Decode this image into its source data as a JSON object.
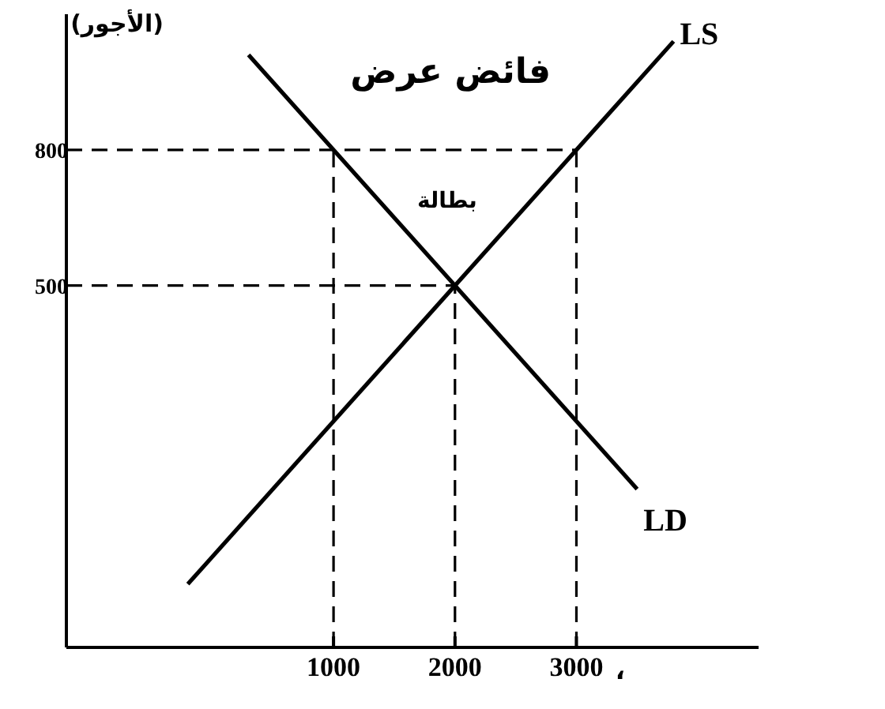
{
  "chart_data": {
    "type": "line",
    "xlabel": "،",
    "ylabel": "(الأجور)",
    "xlim": [
      -1200,
      4500
    ],
    "ylim": [
      -300,
      1100
    ],
    "xticks": [
      1000,
      2000,
      3000
    ],
    "yticks": [
      500,
      800
    ],
    "grid": false,
    "legend": false,
    "marker": "none",
    "line_style": "solid",
    "series": [
      {
        "name": "LS",
        "color": "#000000",
        "x": [
          -200,
          3800
        ],
        "values": [
          -160,
          1040
        ]
      },
      {
        "name": "LD",
        "color": "#000000",
        "x": [
          300,
          3500
        ],
        "values": [
          1010,
          50
        ]
      }
    ],
    "ref_lines": [
      {
        "axis": "x",
        "value": 1000,
        "line_style": "dashed"
      },
      {
        "axis": "x",
        "value": 2000,
        "line_style": "dashed"
      },
      {
        "axis": "x",
        "value": 3000,
        "line_style": "dashed"
      },
      {
        "axis": "y",
        "value": 800,
        "line_style": "dashed"
      },
      {
        "axis": "y",
        "value": 500,
        "line_style": "dashed"
      }
    ],
    "annotations": [
      "فائض عرض",
      "بطالة"
    ]
  }
}
